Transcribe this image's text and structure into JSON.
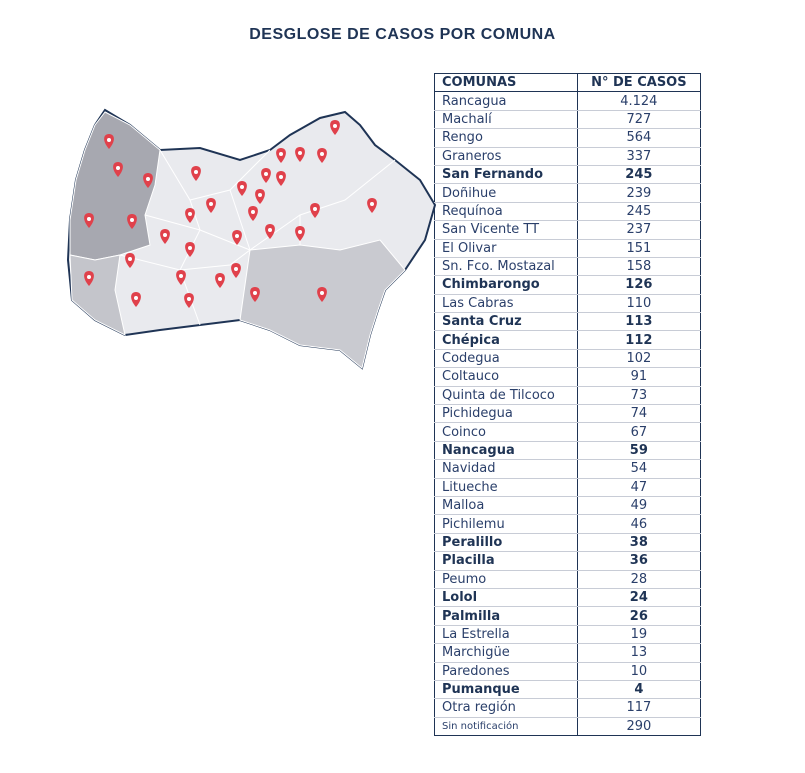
{
  "header": {
    "title": "DESGLOSE DE CASOS POR COMUNA"
  },
  "table": {
    "columns": [
      "COMUNAS",
      "N° DE CASOS"
    ],
    "rows": [
      {
        "comuna": "Rancagua",
        "casos": "4.124",
        "bold": false
      },
      {
        "comuna": "Machalí",
        "casos": "727",
        "bold": false
      },
      {
        "comuna": "Rengo",
        "casos": "564",
        "bold": false
      },
      {
        "comuna": "Graneros",
        "casos": "337",
        "bold": false
      },
      {
        "comuna": "San Fernando",
        "casos": "245",
        "bold": true
      },
      {
        "comuna": "Doñihue",
        "casos": "239",
        "bold": false
      },
      {
        "comuna": "Requínoa",
        "casos": "245",
        "bold": false
      },
      {
        "comuna": "San Vicente TT",
        "casos": "237",
        "bold": false
      },
      {
        "comuna": "El Olivar",
        "casos": "151",
        "bold": false
      },
      {
        "comuna": "Sn. Fco. Mostazal",
        "casos": "158",
        "bold": false
      },
      {
        "comuna": "Chimbarongo",
        "casos": "126",
        "bold": true
      },
      {
        "comuna": "Las Cabras",
        "casos": "110",
        "bold": false
      },
      {
        "comuna": "Santa Cruz",
        "casos": "113",
        "bold": true
      },
      {
        "comuna": "Chépica",
        "casos": "112",
        "bold": true
      },
      {
        "comuna": "Codegua",
        "casos": "102",
        "bold": false
      },
      {
        "comuna": "Coltauco",
        "casos": "91",
        "bold": false
      },
      {
        "comuna": "Quinta de Tilcoco",
        "casos": "73",
        "bold": false
      },
      {
        "comuna": "Pichidegua",
        "casos": "74",
        "bold": false
      },
      {
        "comuna": "Coinco",
        "casos": "67",
        "bold": false
      },
      {
        "comuna": "Nancagua",
        "casos": "59",
        "bold": true
      },
      {
        "comuna": "Navidad",
        "casos": "54",
        "bold": false
      },
      {
        "comuna": "Litueche",
        "casos": "47",
        "bold": false
      },
      {
        "comuna": "Malloa",
        "casos": "49",
        "bold": false
      },
      {
        "comuna": "Pichilemu",
        "casos": "46",
        "bold": false
      },
      {
        "comuna": "Peralillo",
        "casos": "38",
        "bold": true
      },
      {
        "comuna": "Placilla",
        "casos": "36",
        "bold": true
      },
      {
        "comuna": "Peumo",
        "casos": "28",
        "bold": false
      },
      {
        "comuna": "Lolol",
        "casos": "24",
        "bold": true
      },
      {
        "comuna": "Palmilla",
        "casos": "26",
        "bold": true
      },
      {
        "comuna": "La Estrella",
        "casos": "19",
        "bold": false
      },
      {
        "comuna": "Marchigüe",
        "casos": "13",
        "bold": false
      },
      {
        "comuna": "Paredones",
        "casos": "10",
        "bold": false
      },
      {
        "comuna": "Pumanque",
        "casos": "4",
        "bold": true
      },
      {
        "comuna": "Otra región",
        "casos": "117",
        "bold": false
      },
      {
        "comuna": "Sin notificación",
        "casos": "290",
        "bold": false,
        "small": true
      }
    ]
  }
}
